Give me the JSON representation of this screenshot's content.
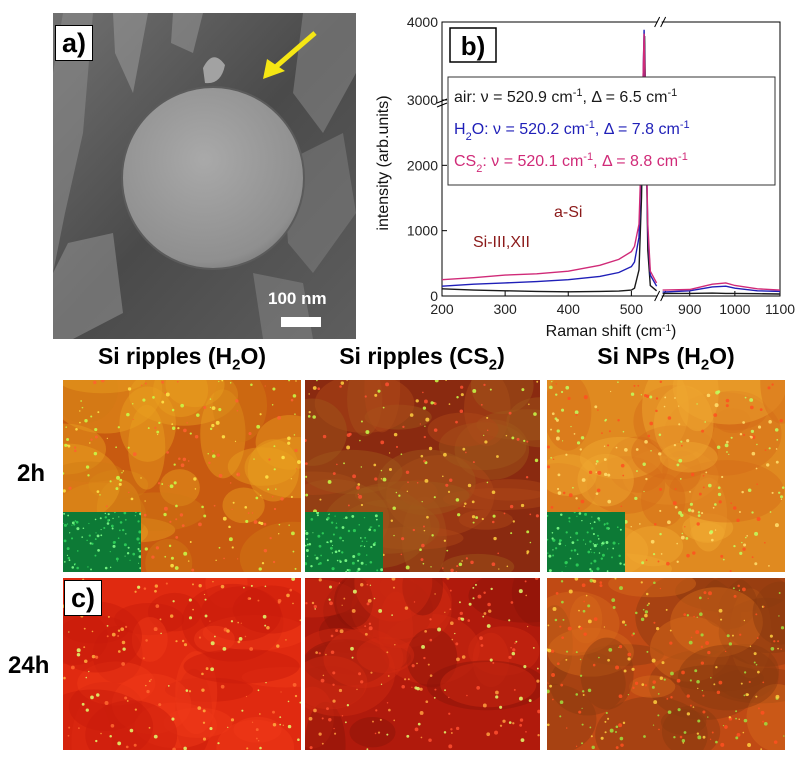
{
  "panel_a": {
    "label": "a)",
    "scale_bar": "100 nm"
  },
  "chart_data": {
    "type": "line",
    "panel_label": "b)",
    "xlabel": "Raman shift (cm",
    "xlabel_sup": "-1",
    "xlabel_tail": ")",
    "ylabel": "intensity (arb.units)",
    "x_ticks": [
      200,
      300,
      400,
      500,
      900,
      1000,
      1100
    ],
    "y_ticks": [
      0,
      1000,
      2000,
      3000,
      4000
    ],
    "y_tick_labels": [
      "0",
      "1000",
      "2000",
      "3000",
      "4000"
    ],
    "y_break_at": 3000,
    "x_break_between": [
      540,
      840
    ],
    "legend": [
      {
        "prefix": "air: ν = 520.9 cm",
        "sup": "-1",
        "suffix": ", Δ = 6.5 cm",
        "sup2": "-1",
        "color": "#1a1a1a"
      },
      {
        "prefix": "H",
        "sub": "2",
        "rest": "O: ν = 520.2 cm",
        "sup": "-1",
        "suffix": ", Δ = 7.8 cm",
        "sup2": "-1",
        "color": "#1f1fb8"
      },
      {
        "prefix": "CS",
        "sub": "2",
        "rest": ": ν = 520.1 cm",
        "sup": "-1",
        "suffix": ", Δ = 8.8 cm",
        "sup2": "-1",
        "color": "#d02a78"
      }
    ],
    "annotations": [
      "a-Si",
      "Si-III,XII"
    ],
    "annotation_color": "#8b1a1a",
    "series": [
      {
        "color": "#1a1a1a",
        "x": [
          200,
          250,
          300,
          350,
          400,
          450,
          480,
          500,
          505,
          512,
          516,
          520.9,
          526,
          530,
          540,
          840,
          900,
          950,
          980,
          1000,
          1050,
          1100
        ],
        "y": [
          110,
          90,
          80,
          70,
          65,
          70,
          75,
          90,
          120,
          400,
          1500,
          3820,
          700,
          160,
          80,
          40,
          40,
          45,
          40,
          40,
          35,
          30
        ]
      },
      {
        "color": "#1f1fb8",
        "x": [
          200,
          250,
          300,
          350,
          400,
          450,
          480,
          500,
          505,
          512,
          516,
          520.2,
          526,
          530,
          540,
          840,
          900,
          950,
          980,
          1000,
          1050,
          1100
        ],
        "y": [
          150,
          180,
          200,
          220,
          250,
          300,
          360,
          450,
          520,
          900,
          2200,
          3900,
          1000,
          320,
          150,
          60,
          80,
          140,
          150,
          120,
          80,
          70
        ]
      },
      {
        "color": "#d02a78",
        "x": [
          200,
          250,
          300,
          350,
          400,
          450,
          480,
          500,
          505,
          512,
          516,
          520.1,
          526,
          530,
          540,
          840,
          900,
          950,
          980,
          1000,
          1050,
          1100
        ],
        "y": [
          250,
          280,
          320,
          340,
          380,
          470,
          560,
          680,
          760,
          1100,
          2300,
          3850,
          1100,
          380,
          200,
          90,
          100,
          180,
          200,
          160,
          110,
          90
        ]
      }
    ]
  },
  "panel_c": {
    "label": "c)",
    "columns": [
      {
        "pre": "Si ripples (H",
        "sub": "2",
        "post": "O)"
      },
      {
        "pre": "Si ripples (CS",
        "sub": "2",
        "post": ")"
      },
      {
        "pre": "Si NPs (H",
        "sub": "2",
        "post": "O)"
      }
    ],
    "rows": [
      "2h",
      "24h"
    ]
  }
}
